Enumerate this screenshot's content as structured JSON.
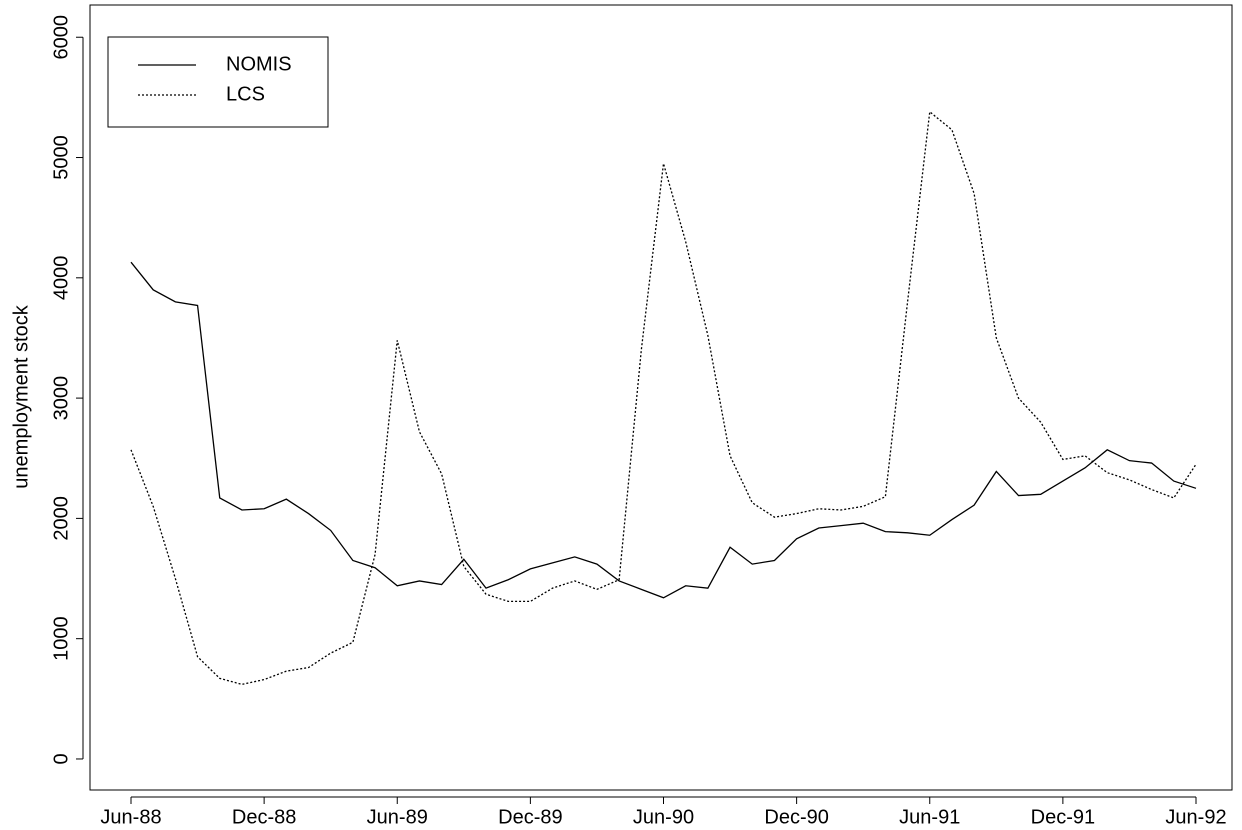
{
  "chart_data": {
    "type": "line",
    "y_label": "unemployment stock",
    "categories": [
      "Jun-88",
      null,
      null,
      null,
      null,
      null,
      "Dec-88",
      null,
      null,
      null,
      null,
      null,
      "Jun-89",
      null,
      null,
      null,
      null,
      null,
      "Dec-89",
      null,
      null,
      null,
      null,
      null,
      "Jun-90",
      null,
      null,
      null,
      null,
      null,
      "Dec-90",
      null,
      null,
      null,
      null,
      null,
      "Jun-91",
      null,
      null,
      null,
      null,
      null,
      "Dec-91",
      null,
      null,
      null,
      null,
      null,
      "Jun-92"
    ],
    "series": [
      {
        "name": "NOMIS",
        "color": "#000000",
        "dash": "solid",
        "values": [
          4130,
          3900,
          3800,
          3770,
          2170,
          2070,
          2080,
          2160,
          2040,
          1900,
          1650,
          1590,
          1440,
          1480,
          1450,
          1660,
          1420,
          1490,
          1580,
          1630,
          1680,
          1620,
          1480,
          1410,
          1340,
          1440,
          1420,
          1760,
          1620,
          1650,
          1830,
          1920,
          1940,
          1960,
          1890,
          1880,
          1860,
          1990,
          2110,
          2390,
          2190,
          2200,
          2310,
          2420,
          2570,
          2480,
          2460,
          2310,
          2250
        ]
      },
      {
        "name": "LCS",
        "color": "#000000",
        "dash": "dotted",
        "values": [
          2570,
          2100,
          1500,
          850,
          670,
          620,
          660,
          730,
          760,
          880,
          970,
          1700,
          3480,
          2720,
          2370,
          1600,
          1370,
          1310,
          1310,
          1420,
          1480,
          1410,
          1490,
          3400,
          4950,
          4300,
          3520,
          2520,
          2130,
          2010,
          2040,
          2080,
          2070,
          2100,
          2180,
          3800,
          5380,
          5230,
          4700,
          3500,
          3000,
          2800,
          2490,
          2520,
          2380,
          2320,
          2240,
          2170,
          2450
        ]
      }
    ],
    "ylim": [
      -258,
      6268
    ],
    "yticks": [
      0,
      1000,
      2000,
      3000,
      4000,
      5000,
      6000
    ],
    "grid": false,
    "legend": "top-left"
  }
}
